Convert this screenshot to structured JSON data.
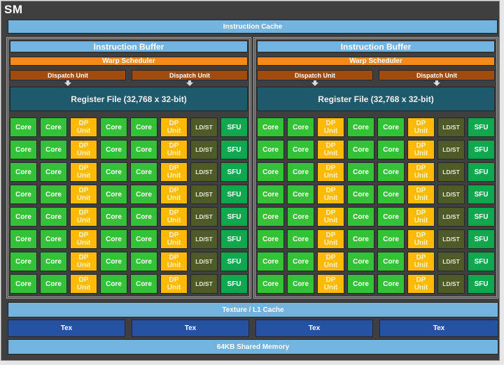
{
  "title": "SM",
  "instruction_cache": "Instruction Cache",
  "panels": [
    {
      "instruction_buffer": "Instruction Buffer",
      "warp_scheduler": "Warp Scheduler",
      "dispatch_units": [
        "Dispatch Unit",
        "Dispatch Unit"
      ],
      "register_file": "Register File (32,768 x 32-bit)",
      "grid": [
        [
          "Core",
          "Core",
          "DP Unit",
          "Core",
          "Core",
          "DP Unit",
          "LD/ST",
          "SFU"
        ],
        [
          "Core",
          "Core",
          "DP Unit",
          "Core",
          "Core",
          "DP Unit",
          "LD/ST",
          "SFU"
        ],
        [
          "Core",
          "Core",
          "DP Unit",
          "Core",
          "Core",
          "DP Unit",
          "LD/ST",
          "SFU"
        ],
        [
          "Core",
          "Core",
          "DP Unit",
          "Core",
          "Core",
          "DP Unit",
          "LD/ST",
          "SFU"
        ],
        [
          "Core",
          "Core",
          "DP Unit",
          "Core",
          "Core",
          "DP Unit",
          "LD/ST",
          "SFU"
        ],
        [
          "Core",
          "Core",
          "DP Unit",
          "Core",
          "Core",
          "DP Unit",
          "LD/ST",
          "SFU"
        ],
        [
          "Core",
          "Core",
          "DP Unit",
          "Core",
          "Core",
          "DP Unit",
          "LD/ST",
          "SFU"
        ],
        [
          "Core",
          "Core",
          "DP Unit",
          "Core",
          "Core",
          "DP Unit",
          "LD/ST",
          "SFU"
        ]
      ]
    },
    {
      "instruction_buffer": "Instruction Buffer",
      "warp_scheduler": "Warp Scheduler",
      "dispatch_units": [
        "Dispatch Unit",
        "Dispatch Unit"
      ],
      "register_file": "Register File (32,768 x 32-bit)",
      "grid": [
        [
          "Core",
          "Core",
          "DP Unit",
          "Core",
          "Core",
          "DP Unit",
          "LD/ST",
          "SFU"
        ],
        [
          "Core",
          "Core",
          "DP Unit",
          "Core",
          "Core",
          "DP Unit",
          "LD/ST",
          "SFU"
        ],
        [
          "Core",
          "Core",
          "DP Unit",
          "Core",
          "Core",
          "DP Unit",
          "LD/ST",
          "SFU"
        ],
        [
          "Core",
          "Core",
          "DP Unit",
          "Core",
          "Core",
          "DP Unit",
          "LD/ST",
          "SFU"
        ],
        [
          "Core",
          "Core",
          "DP Unit",
          "Core",
          "Core",
          "DP Unit",
          "LD/ST",
          "SFU"
        ],
        [
          "Core",
          "Core",
          "DP Unit",
          "Core",
          "Core",
          "DP Unit",
          "LD/ST",
          "SFU"
        ],
        [
          "Core",
          "Core",
          "DP Unit",
          "Core",
          "Core",
          "DP Unit",
          "LD/ST",
          "SFU"
        ],
        [
          "Core",
          "Core",
          "DP Unit",
          "Core",
          "Core",
          "DP Unit",
          "LD/ST",
          "SFU"
        ]
      ]
    }
  ],
  "cell_types": {
    "Core": "core",
    "DP Unit": "dp",
    "LD/ST": "ldst",
    "SFU": "sfu"
  },
  "texture_cache": "Texture / L1 Cache",
  "tex_units": [
    "Tex",
    "Tex",
    "Tex",
    "Tex"
  ],
  "shared_memory": "64KB Shared Memory",
  "colors": {
    "frame": "#3f3f3f",
    "cache_blue": "#73b3df",
    "warp_scheduler": "#f28a1d",
    "dispatch_unit": "#a24b0e",
    "register_file": "#1f5a6c",
    "core": "#35c137",
    "dp_unit": "#ffba06",
    "ld_st": "#4e5a27",
    "sfu": "#10a84e",
    "tex": "#2552a3"
  }
}
